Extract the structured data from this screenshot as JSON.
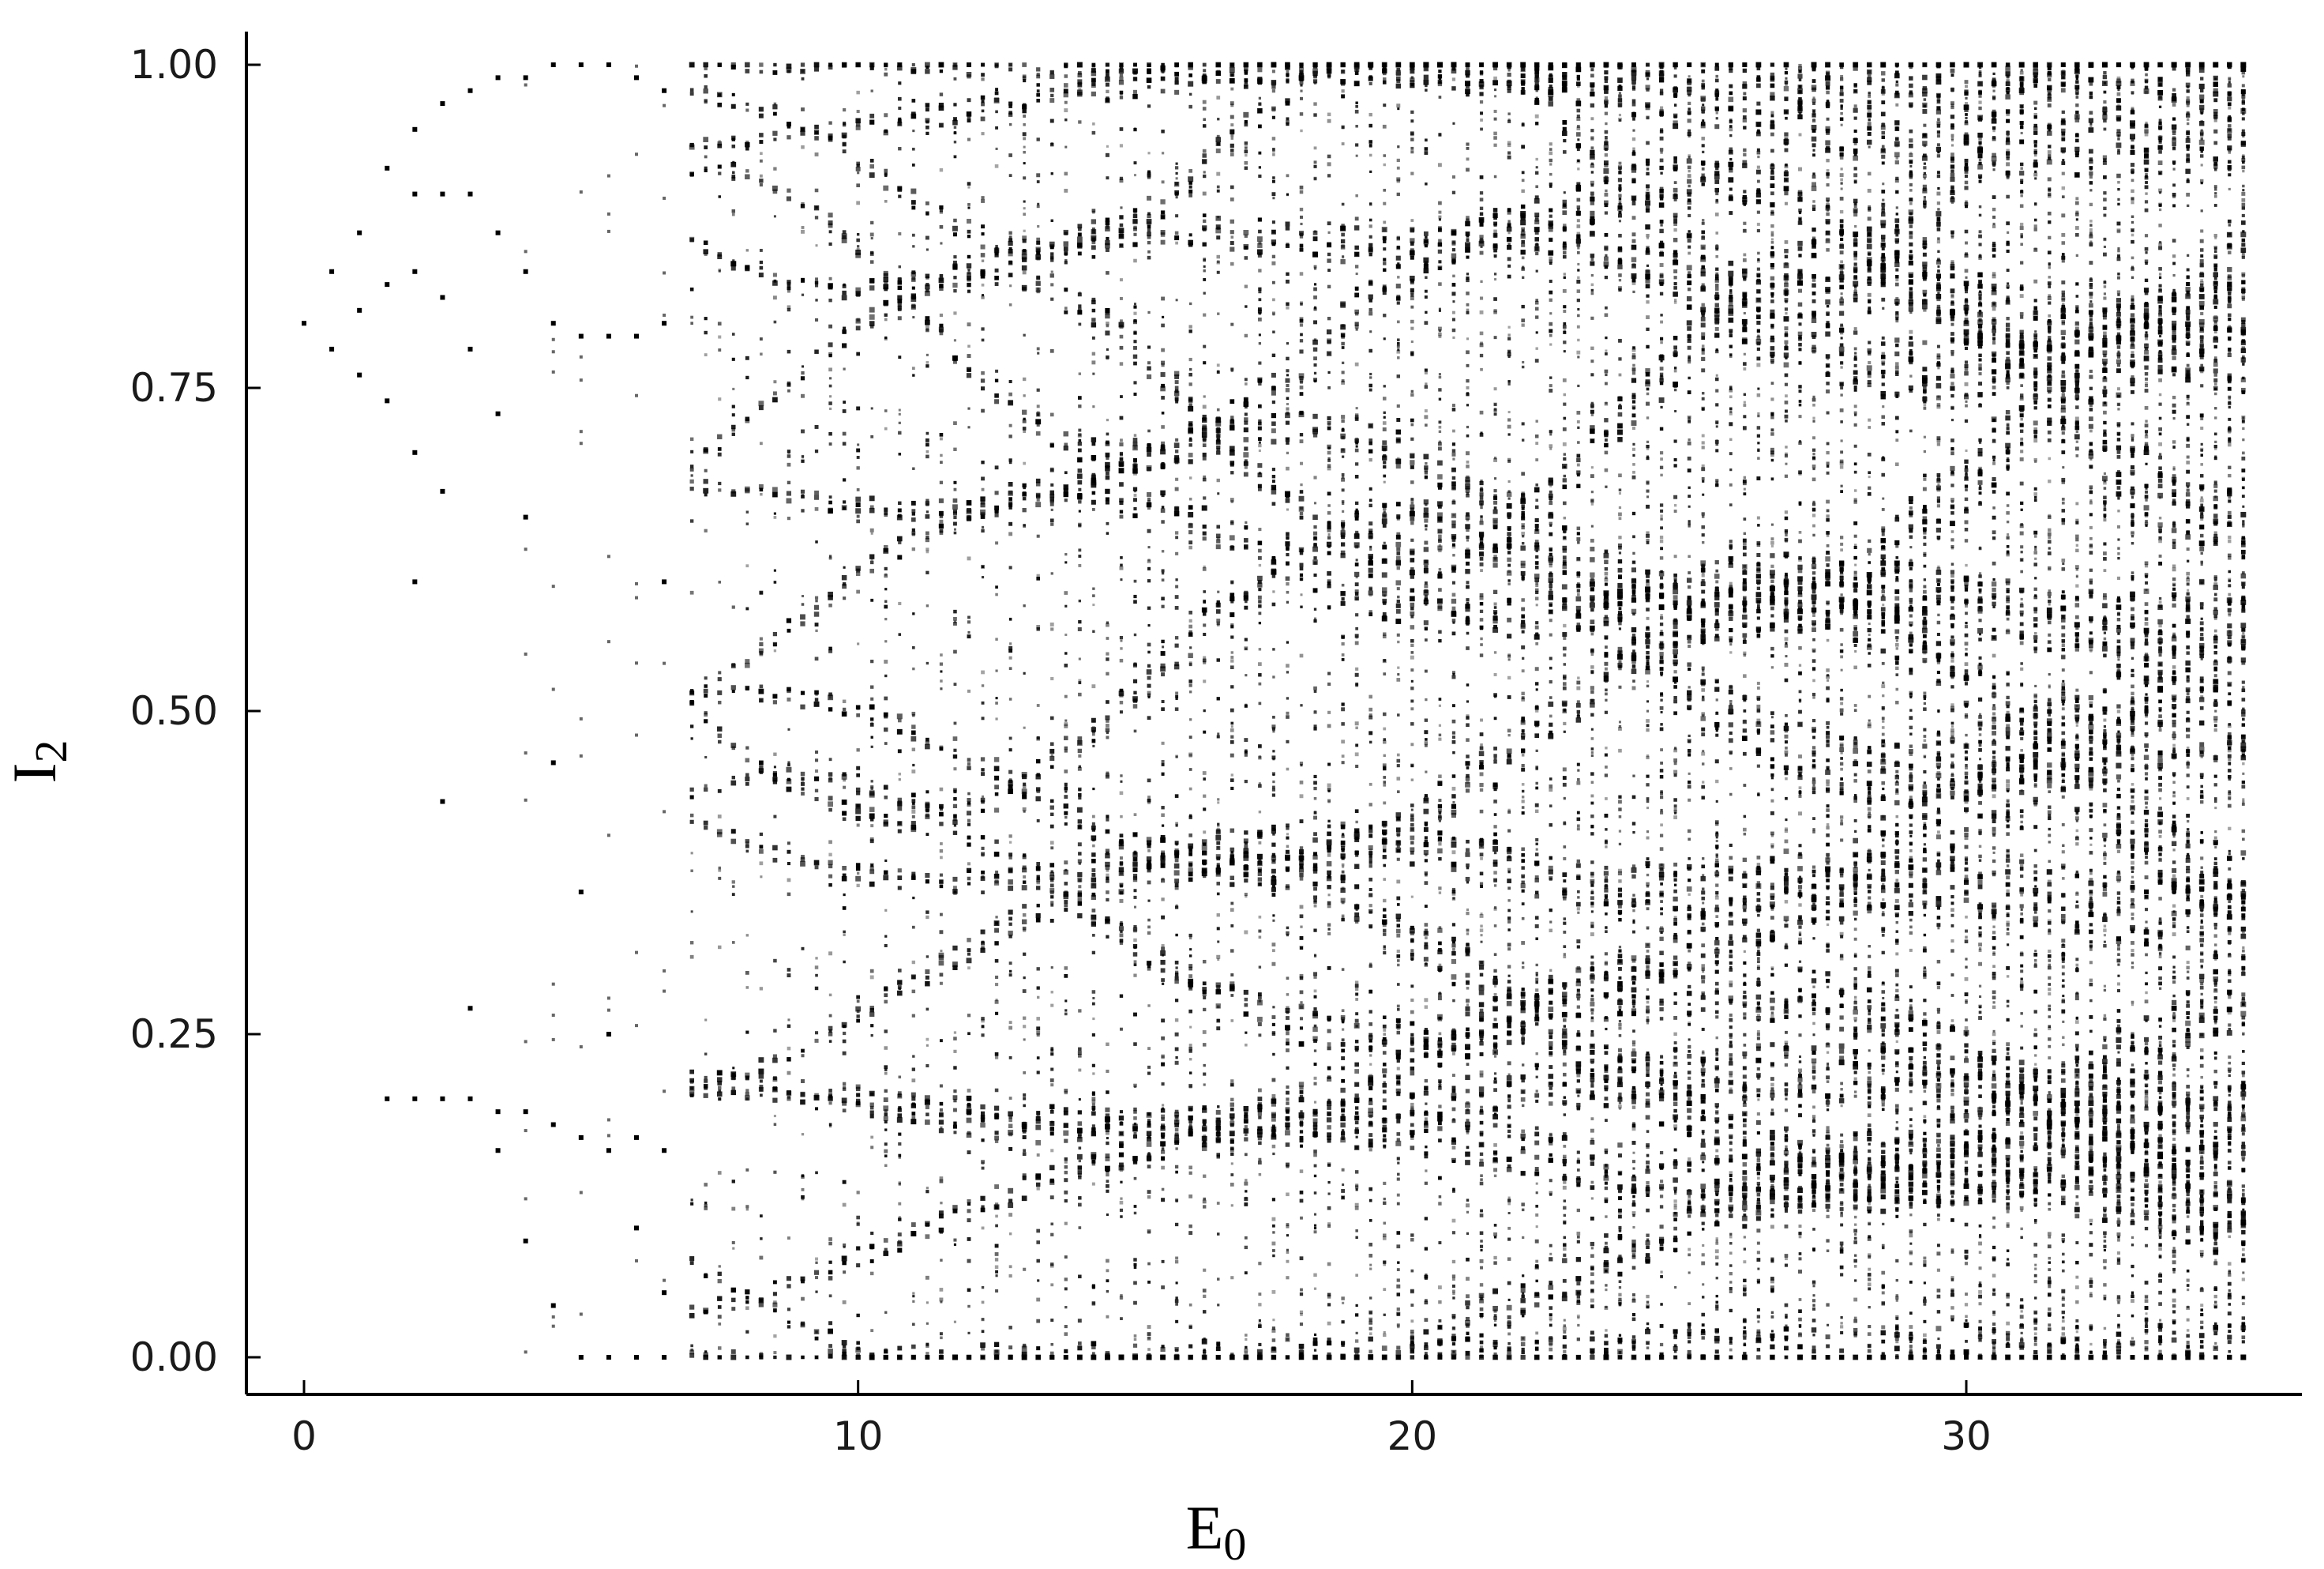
{
  "chart_data": {
    "type": "scatter",
    "title": "",
    "xlabel": {
      "base": "E",
      "sub": "0"
    },
    "ylabel": {
      "base": "I",
      "sub": "2"
    },
    "xlim": [
      -1,
      36.7
    ],
    "ylim": [
      -0.03,
      1.03
    ],
    "xticks": [
      0,
      10,
      20,
      30
    ],
    "xtick_labels": [
      "0",
      "10",
      "20",
      "30"
    ],
    "yticks": [
      0.0,
      0.25,
      0.5,
      0.75,
      1.0
    ],
    "ytick_labels": [
      "0.00",
      "0.25",
      "0.50",
      "0.75",
      "1.00"
    ],
    "grid": false,
    "legend": "none",
    "marker_color": "#000000",
    "x_range_of_data": [
      0,
      35
    ],
    "x_step": 0.25,
    "series": [
      {
        "values_description_note": "",
        "points": [
          [
            0,
            0.8
          ],
          [
            0.5,
            0.84
          ],
          [
            0.5,
            0.78
          ],
          [
            1,
            0.87
          ],
          [
            1,
            0.81
          ],
          [
            1,
            0.76
          ],
          [
            1.5,
            0.92
          ],
          [
            1.5,
            0.83
          ],
          [
            1.5,
            0.74
          ],
          [
            1.5,
            0.2
          ],
          [
            2,
            0.95
          ],
          [
            2,
            0.9
          ],
          [
            2,
            0.84
          ],
          [
            2,
            0.7
          ],
          [
            2,
            0.6
          ],
          [
            2,
            0.2
          ],
          [
            2.5,
            0.97
          ],
          [
            2.5,
            0.9
          ],
          [
            2.5,
            0.82
          ],
          [
            2.5,
            0.67
          ],
          [
            2.5,
            0.43
          ],
          [
            2.5,
            0.2
          ],
          [
            3,
            0.98
          ],
          [
            3,
            0.9
          ],
          [
            3,
            0.78
          ],
          [
            3,
            0.27
          ],
          [
            3,
            0.2
          ],
          [
            3.5,
            0.99
          ],
          [
            3.5,
            0.87
          ],
          [
            3.5,
            0.73
          ],
          [
            3.5,
            0.16
          ],
          [
            3.5,
            0.19
          ],
          [
            4,
            0.99
          ],
          [
            4,
            0.84
          ],
          [
            4,
            0.65
          ],
          [
            4,
            0.09
          ],
          [
            4,
            0.19
          ],
          [
            4.5,
            1.0
          ],
          [
            4.5,
            0.8
          ],
          [
            4.5,
            0.46
          ],
          [
            4.5,
            0.04
          ],
          [
            4.5,
            0.18
          ],
          [
            5,
            1.0
          ],
          [
            5,
            0.79
          ],
          [
            5,
            0.36
          ],
          [
            5,
            0.0
          ],
          [
            5,
            0.17
          ],
          [
            5.5,
            1.0
          ],
          [
            5.5,
            0.79
          ],
          [
            5.5,
            0.25
          ],
          [
            5.5,
            0.0
          ],
          [
            5.5,
            0.16
          ],
          [
            6,
            0.99
          ],
          [
            6,
            0.79
          ],
          [
            6,
            0.17
          ],
          [
            6,
            0.1
          ],
          [
            6,
            0.0
          ],
          [
            6.5,
            0.98
          ],
          [
            6.5,
            0.8
          ],
          [
            6.5,
            0.6
          ],
          [
            6.5,
            0.16
          ],
          [
            6.5,
            0.05
          ],
          [
            6.5,
            0.0
          ]
        ]
      }
    ]
  }
}
